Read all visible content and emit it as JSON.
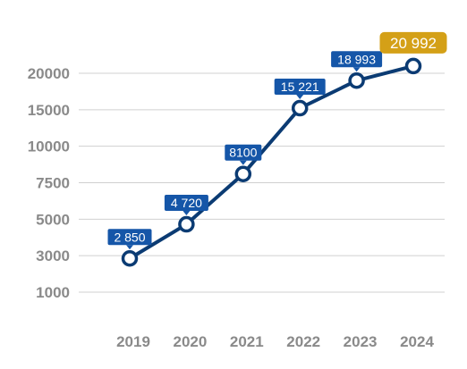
{
  "chart_data": {
    "type": "line",
    "title": "",
    "xlabel": "",
    "ylabel": "",
    "x": [
      "2019",
      "2020",
      "2021",
      "2022",
      "2023",
      "2024"
    ],
    "series": [
      {
        "values": [
          2850,
          4720,
          8100,
          15221,
          18993,
          20992
        ]
      }
    ],
    "data_labels": [
      "2 850",
      "4 720",
      "8100",
      "15 221",
      "18 993",
      "20 992"
    ],
    "y_ticks": [
      {
        "value": 1000,
        "label": "1000"
      },
      {
        "value": 3000,
        "label": "3000"
      },
      {
        "value": 5000,
        "label": "5000"
      },
      {
        "value": 7500,
        "label": "7500"
      },
      {
        "value": 10000,
        "label": "10000"
      },
      {
        "value": 15000,
        "label": "15000"
      },
      {
        "value": 20000,
        "label": "20000"
      }
    ],
    "y_scale": "categorical-ticks (unevenly spaced values, evenly spaced gridlines)",
    "grid": true,
    "legend": "none",
    "colors": {
      "line": "#0b3b73",
      "label_bg": "#1556a8",
      "highlight_bg": "#d4a017",
      "grid": "#d0d0d0",
      "tick_text": "#8a8a8a"
    }
  }
}
